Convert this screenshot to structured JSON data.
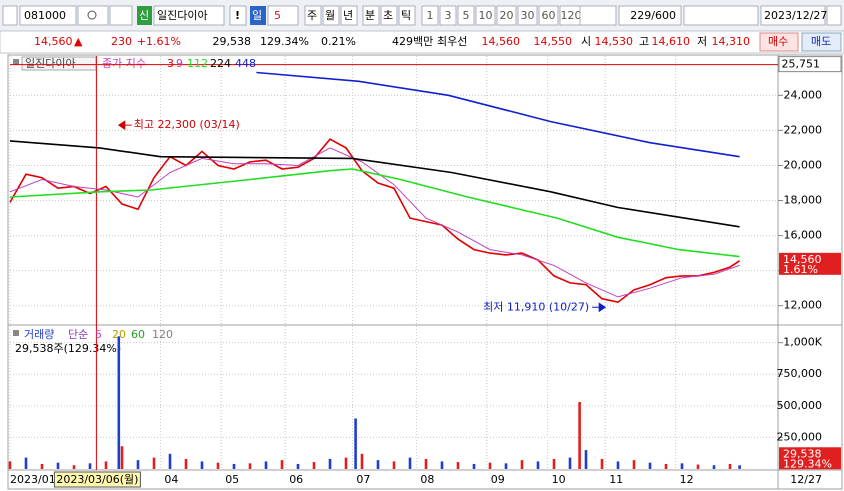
{
  "toolbar": {
    "code": "081000",
    "name": "일진다이아",
    "credit": "신",
    "alert": "!",
    "period_selected": "일",
    "period_count": "5",
    "periods": [
      "주",
      "월",
      "년",
      "분",
      "초",
      "틱"
    ],
    "intervals": [
      "1",
      "3",
      "5",
      "10",
      "20",
      "30",
      "60",
      "120"
    ],
    "bar_count": "229/600",
    "date": "2023/12/27"
  },
  "quote": {
    "price": "14,560",
    "arrow": "▲",
    "change": "230",
    "change_pct": "+1.61%",
    "volume": "29,538",
    "volume_ratio": "129.34%",
    "turnover": "0.21%",
    "amount": "429백만",
    "best_label": "최우선",
    "ask": "14,560",
    "bid": "14,550",
    "open_label": "시",
    "open": "14,530",
    "high_label": "고",
    "high": "14,610",
    "low_label": "저",
    "low": "14,310",
    "buy": "매수",
    "sell": "매도"
  },
  "chart_data": [
    {
      "type": "line",
      "legend_title": "일진다이아",
      "legend_label": "종가 지수",
      "xlim": [
        0,
        240
      ],
      "ylim": [
        10900,
        26300
      ],
      "xticks": [
        {
          "value": 0,
          "label": "2023/01"
        },
        {
          "value": 47,
          "label": "04"
        },
        {
          "value": 66,
          "label": "05"
        },
        {
          "value": 86,
          "label": "06"
        },
        {
          "value": 107,
          "label": "07"
        },
        {
          "value": 127,
          "label": "08"
        },
        {
          "value": 149,
          "label": "09"
        },
        {
          "value": 168,
          "label": "10"
        },
        {
          "value": 186,
          "label": "11"
        },
        {
          "value": 208,
          "label": "12"
        }
      ],
      "yticks": [
        {
          "value": 12000,
          "label": "12,000"
        },
        {
          "value": 14000,
          "label": "14,000"
        },
        {
          "value": 16000,
          "label": "16,000"
        },
        {
          "value": 18000,
          "label": "18,000"
        },
        {
          "value": 20000,
          "label": "20,000"
        },
        {
          "value": 22000,
          "label": "22,000"
        },
        {
          "value": 24000,
          "label": "24,000"
        }
      ],
      "grid": true,
      "series": [
        {
          "name": "3",
          "color": "#e00000",
          "x": [
            0,
            5,
            10,
            15,
            20,
            25,
            30,
            35,
            40,
            45,
            50,
            55,
            60,
            65,
            70,
            75,
            80,
            85,
            90,
            95,
            100,
            105,
            110,
            115,
            120,
            125,
            130,
            135,
            140,
            145,
            150,
            155,
            160,
            165,
            170,
            175,
            180,
            185,
            190,
            195,
            200,
            205,
            210,
            215,
            220,
            225,
            228
          ],
          "values": [
            17900,
            19500,
            19300,
            18700,
            18800,
            18400,
            18800,
            17800,
            17500,
            19300,
            20500,
            20000,
            20800,
            20000,
            19800,
            20200,
            20300,
            19800,
            19900,
            20400,
            21500,
            21000,
            19700,
            19000,
            18700,
            17000,
            16800,
            16600,
            15800,
            15200,
            15000,
            14900,
            15000,
            14600,
            13700,
            13300,
            13200,
            12400,
            12200,
            12900,
            13200,
            13600,
            13700,
            13700,
            13900,
            14200,
            14560
          ]
        },
        {
          "name": "9",
          "color": "#c040c0",
          "x": [
            0,
            10,
            20,
            30,
            40,
            50,
            60,
            70,
            80,
            90,
            100,
            110,
            120,
            130,
            140,
            150,
            160,
            170,
            180,
            190,
            200,
            210,
            220,
            228
          ],
          "values": [
            18500,
            19200,
            18800,
            18600,
            18200,
            19600,
            20400,
            20100,
            20100,
            20000,
            21000,
            20200,
            18900,
            17000,
            16200,
            15200,
            14900,
            14300,
            13300,
            12500,
            13000,
            13600,
            13800,
            14300
          ]
        },
        {
          "name": "112",
          "color": "#22dd22",
          "x": [
            0,
            28,
            44,
            75,
            100,
            107,
            122,
            143,
            171,
            190,
            209,
            228
          ],
          "values": [
            18200,
            18500,
            18600,
            19200,
            19700,
            19800,
            19200,
            18200,
            17000,
            15900,
            15200,
            14800
          ]
        },
        {
          "name": "224",
          "color": "#000000",
          "x": [
            0,
            28,
            47,
            107,
            138,
            169,
            190,
            228
          ],
          "values": [
            21400,
            21000,
            20500,
            20400,
            19600,
            18500,
            17600,
            16500
          ]
        },
        {
          "name": "448",
          "color": "#1020d0",
          "x": [
            77,
            109,
            137,
            169,
            200,
            228
          ],
          "values": [
            25300,
            24800,
            24000,
            22500,
            21300,
            20500
          ]
        }
      ],
      "annotations": [
        {
          "text": "최고 22,300 (03/14)",
          "x": 34,
          "y": 22300
        },
        {
          "text": "최저 11,910 (10/27)",
          "x": 186,
          "y": 11910
        }
      ],
      "high_line": {
        "value": 25751,
        "label": "25,751"
      },
      "current": {
        "value": 14560,
        "label": "14,560",
        "change": "1.61%"
      },
      "cursor": {
        "x": 27,
        "label": "2023/03/06(월)"
      },
      "end_label": "12/27"
    },
    {
      "type": "bar",
      "title": "거래량",
      "ma_type": "단순",
      "info": "29,538주(129.34%)",
      "ma_legend": [
        {
          "name": "5",
          "color": "#c040c0"
        },
        {
          "name": "20",
          "color": "#b0a000"
        },
        {
          "name": "60",
          "color": "#20a020"
        },
        {
          "name": "120",
          "color": "#808080"
        }
      ],
      "colors": [
        "#e0201f",
        "#1f3fd0"
      ],
      "ylim": [
        0,
        1100000
      ],
      "yticks": [
        {
          "value": 250000,
          "label": "250,000"
        },
        {
          "value": 500000,
          "label": "500,000"
        },
        {
          "value": 750000,
          "label": "750,000"
        },
        {
          "value": 1000000,
          "label": "1,000K"
        }
      ],
      "x": [
        0,
        5,
        10,
        15,
        20,
        25,
        30,
        34,
        35,
        40,
        45,
        50,
        55,
        60,
        65,
        70,
        75,
        80,
        85,
        90,
        95,
        100,
        105,
        108,
        110,
        115,
        120,
        125,
        130,
        135,
        140,
        145,
        150,
        155,
        160,
        165,
        170,
        175,
        178,
        180,
        185,
        190,
        195,
        200,
        205,
        210,
        215,
        220,
        225,
        228
      ],
      "values": [
        60000,
        90000,
        40000,
        50000,
        30000,
        45000,
        60000,
        1050000,
        180000,
        70000,
        90000,
        120000,
        80000,
        60000,
        50000,
        40000,
        45000,
        60000,
        70000,
        40000,
        55000,
        80000,
        90000,
        400000,
        120000,
        70000,
        60000,
        90000,
        80000,
        60000,
        55000,
        40000,
        50000,
        45000,
        70000,
        60000,
        80000,
        90000,
        530000,
        150000,
        80000,
        60000,
        70000,
        50000,
        40000,
        45000,
        35000,
        30000,
        40000,
        29538
      ],
      "current": {
        "value": 29538,
        "label": "29,538",
        "ratio": "129.34%"
      }
    }
  ]
}
